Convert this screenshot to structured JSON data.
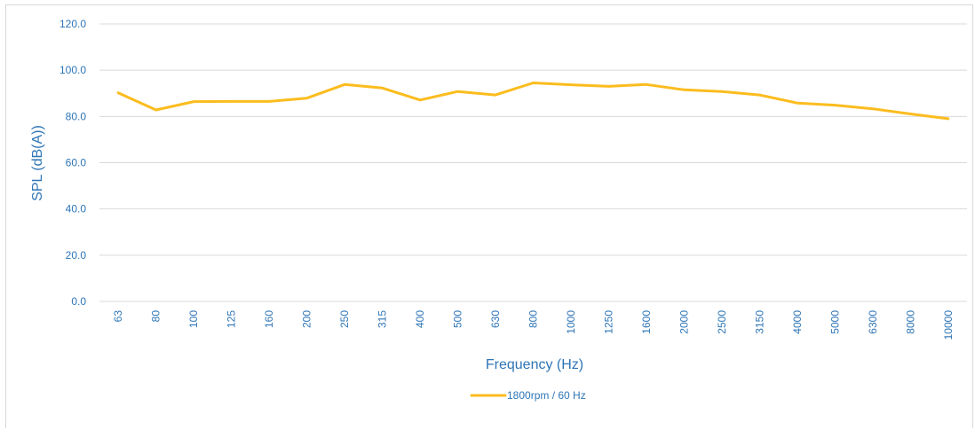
{
  "chart_data": {
    "type": "line",
    "title": "",
    "xlabel": "Frequency (Hz)",
    "ylabel": "SPL (dB(A))",
    "categories": [
      "63",
      "80",
      "100",
      "125",
      "160",
      "200",
      "250",
      "315",
      "400",
      "500",
      "630",
      "800",
      "1000",
      "1250",
      "1600",
      "2000",
      "2500",
      "3150",
      "4000",
      "5000",
      "6300",
      "8000",
      "10000"
    ],
    "y_ticks": [
      "0.0",
      "20.0",
      "40.0",
      "60.0",
      "80.0",
      "100.0",
      "120.0"
    ],
    "ylim": [
      0,
      120
    ],
    "grid": "horizontal",
    "legend_position": "bottom",
    "series": [
      {
        "name": "1800rpm / 60 Hz",
        "color": "#fbbc1e",
        "values": [
          90.2,
          82.8,
          86.4,
          86.5,
          86.5,
          87.9,
          93.8,
          92.3,
          87.1,
          90.8,
          89.3,
          94.5,
          93.7,
          93.0,
          93.8,
          91.5,
          90.8,
          89.3,
          85.8,
          84.9,
          83.3,
          81.1,
          79.0
        ]
      }
    ]
  }
}
